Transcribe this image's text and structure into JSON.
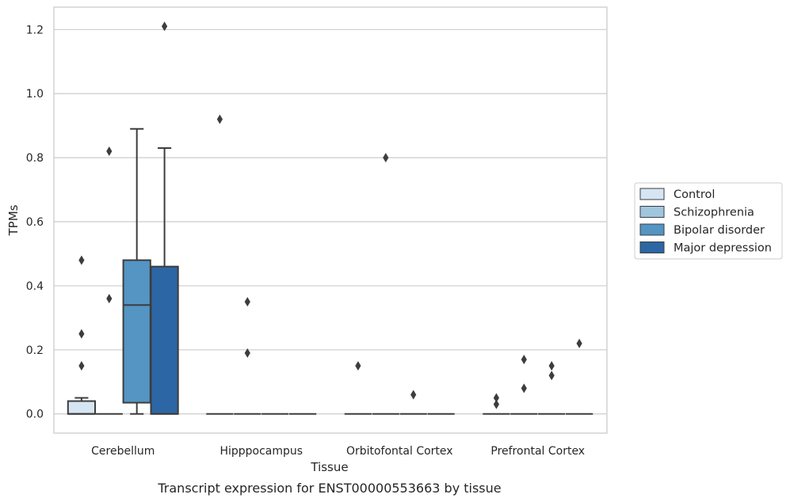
{
  "caption": "Transcript expression for ENST00000553663 by tissue",
  "chart_data": {
    "type": "box",
    "xlabel": "Tissue",
    "ylabel": "TPMs",
    "ylim": [
      -0.06,
      1.27
    ],
    "yticks": [
      0.0,
      0.2,
      0.4,
      0.6,
      0.8,
      1.0,
      1.2
    ],
    "ytick_labels": [
      "0.0",
      "0.2",
      "0.4",
      "0.6",
      "0.8",
      "1.0",
      "1.2"
    ],
    "grid": "horizontal",
    "legend_position": "right",
    "categories": [
      "Cerebellum",
      "Hipppocampus",
      "Orbitofontal Cortex",
      "Prefrontal Cortex"
    ],
    "series": [
      {
        "name": "Control",
        "color": "#d6e5f3",
        "boxes": [
          {
            "q1": 0.0,
            "median": 0.0,
            "q3": 0.04,
            "whisker_low": 0.0,
            "whisker_high": 0.05,
            "outliers": [
              0.15,
              0.25,
              0.48
            ]
          },
          {
            "q1": 0.0,
            "median": 0.0,
            "q3": 0.0,
            "whisker_low": 0.0,
            "whisker_high": 0.0,
            "outliers": [
              0.92
            ]
          },
          {
            "q1": 0.0,
            "median": 0.0,
            "q3": 0.0,
            "whisker_low": 0.0,
            "whisker_high": 0.0,
            "outliers": [
              0.15
            ]
          },
          {
            "q1": 0.0,
            "median": 0.0,
            "q3": 0.0,
            "whisker_low": 0.0,
            "whisker_high": 0.0,
            "outliers": [
              0.03,
              0.05
            ]
          }
        ]
      },
      {
        "name": "Schizophrenia",
        "color": "#a0c6de",
        "boxes": [
          {
            "q1": 0.0,
            "median": 0.0,
            "q3": 0.0,
            "whisker_low": 0.0,
            "whisker_high": 0.0,
            "outliers": [
              0.36,
              0.82
            ]
          },
          {
            "q1": 0.0,
            "median": 0.0,
            "q3": 0.0,
            "whisker_low": 0.0,
            "whisker_high": 0.0,
            "outliers": [
              0.19,
              0.35
            ]
          },
          {
            "q1": 0.0,
            "median": 0.0,
            "q3": 0.0,
            "whisker_low": 0.0,
            "whisker_high": 0.0,
            "outliers": [
              0.8
            ]
          },
          {
            "q1": 0.0,
            "median": 0.0,
            "q3": 0.0,
            "whisker_low": 0.0,
            "whisker_high": 0.0,
            "outliers": [
              0.08,
              0.17
            ]
          }
        ]
      },
      {
        "name": "Bipolar disorder",
        "color": "#5495c4",
        "boxes": [
          {
            "q1": 0.035,
            "median": 0.34,
            "q3": 0.48,
            "whisker_low": 0.0,
            "whisker_high": 0.89,
            "outliers": []
          },
          {
            "q1": 0.0,
            "median": 0.0,
            "q3": 0.0,
            "whisker_low": 0.0,
            "whisker_high": 0.0,
            "outliers": []
          },
          {
            "q1": 0.0,
            "median": 0.0,
            "q3": 0.0,
            "whisker_low": 0.0,
            "whisker_high": 0.0,
            "outliers": [
              0.06
            ]
          },
          {
            "q1": 0.0,
            "median": 0.0,
            "q3": 0.0,
            "whisker_low": 0.0,
            "whisker_high": 0.0,
            "outliers": [
              0.12,
              0.15
            ]
          }
        ]
      },
      {
        "name": "Major depression",
        "color": "#2c66a4",
        "boxes": [
          {
            "q1": 0.0,
            "median": 0.0,
            "q3": 0.46,
            "whisker_low": 0.0,
            "whisker_high": 0.83,
            "outliers": [
              1.21
            ]
          },
          {
            "q1": 0.0,
            "median": 0.0,
            "q3": 0.0,
            "whisker_low": 0.0,
            "whisker_high": 0.0,
            "outliers": []
          },
          {
            "q1": 0.0,
            "median": 0.0,
            "q3": 0.0,
            "whisker_low": 0.0,
            "whisker_high": 0.0,
            "outliers": []
          },
          {
            "q1": 0.0,
            "median": 0.0,
            "q3": 0.0,
            "whisker_low": 0.0,
            "whisker_high": 0.0,
            "outliers": [
              0.22
            ]
          }
        ]
      }
    ]
  }
}
